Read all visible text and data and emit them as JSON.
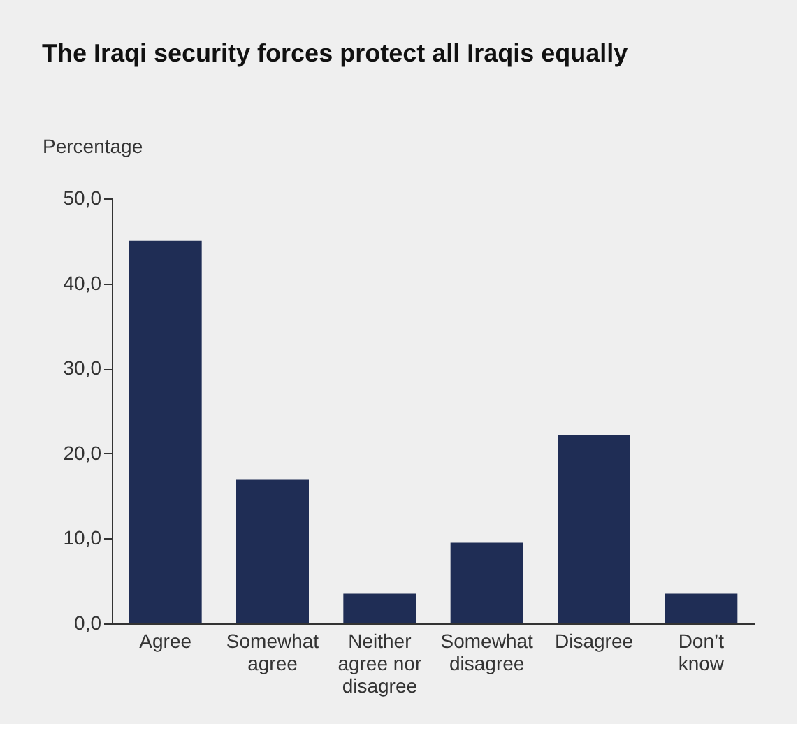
{
  "chart_data": {
    "type": "bar",
    "title": "The Iraqi security forces protect all Iraqis equally",
    "ylabel": "Percentage",
    "categories": [
      "Agree",
      "Somewhat agree",
      "Neither agree nor disagree",
      "Somewhat disagree",
      "Disagree",
      "Don’t know"
    ],
    "values": [
      45.0,
      16.9,
      3.5,
      9.5,
      22.2,
      3.5
    ],
    "color": "#1f2d55",
    "ylim": [
      0,
      50
    ],
    "yticks": [
      {
        "value": 0,
        "label": "0,0"
      },
      {
        "value": 10,
        "label": "10,0"
      },
      {
        "value": 20,
        "label": "20,0"
      },
      {
        "value": 30,
        "label": "30,0"
      },
      {
        "value": 40,
        "label": "40,0"
      },
      {
        "value": 50,
        "label": "50,0"
      }
    ],
    "grid": false
  }
}
